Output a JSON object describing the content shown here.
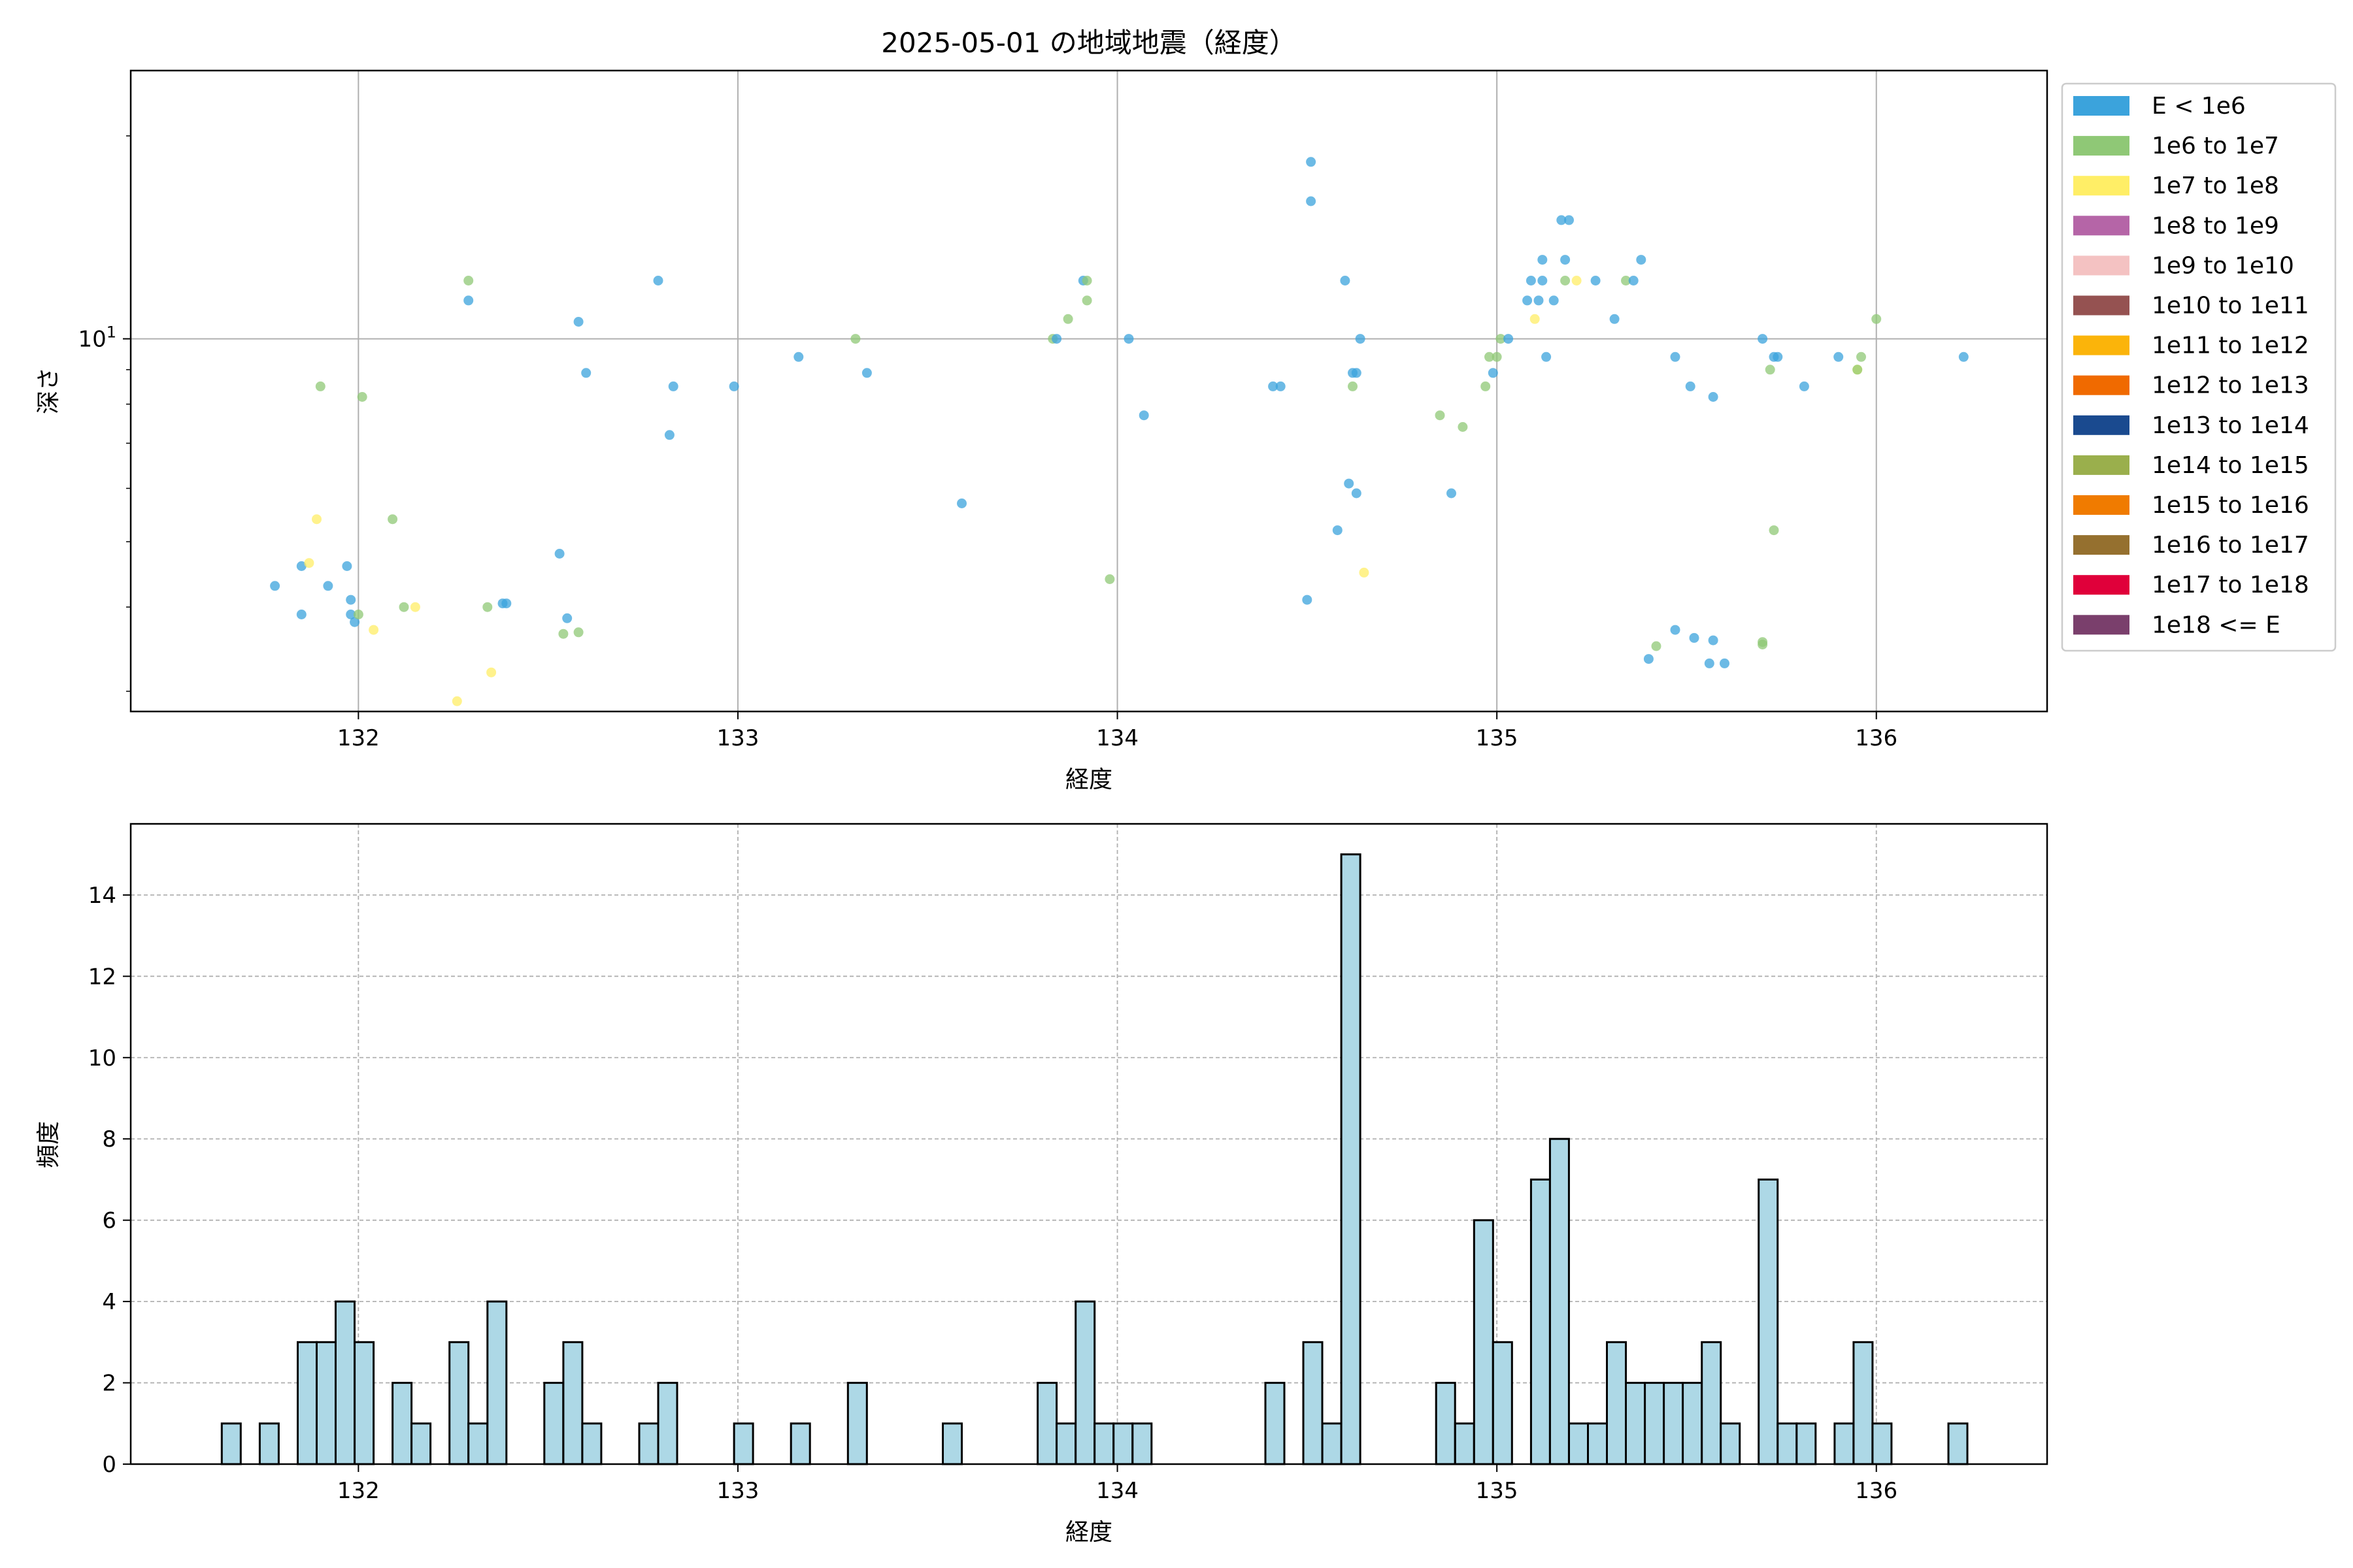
{
  "chart_data": [
    {
      "type": "scatter",
      "title": "2025-05-01 の地域地震（経度）",
      "xlabel": "経度",
      "ylabel": "深さ",
      "xlim": [
        131.4,
        136.45
      ],
      "ylim": [
        2.8,
        25
      ],
      "yscale": "log",
      "x_ticks": [
        132,
        133,
        134,
        135,
        136
      ],
      "y_tick_labels": [
        {
          "value": 10,
          "base": "10",
          "exp": "1"
        }
      ],
      "grid": true,
      "legend_position": "outside-right",
      "legend": [
        {
          "label": "E < 1e6",
          "color": "#3ba3dc"
        },
        {
          "label": "1e6 to 1e7",
          "color": "#8fc876"
        },
        {
          "label": "1e7 to 1e8",
          "color": "#ffee66"
        },
        {
          "label": "1e8 to 1e9",
          "color": "#b565a7"
        },
        {
          "label": "1e9 to 1e10",
          "color": "#f4c2c2"
        },
        {
          "label": "1e10 to 1e11",
          "color": "#955251"
        },
        {
          "label": "1e11 to 1e12",
          "color": "#fbb40a"
        },
        {
          "label": "1e12 to 1e13",
          "color": "#f06a00"
        },
        {
          "label": "1e13 to 1e14",
          "color": "#1a4a8f"
        },
        {
          "label": "1e14 to 1e15",
          "color": "#9aaf4c"
        },
        {
          "label": "1e15 to 1e16",
          "color": "#f07b00"
        },
        {
          "label": "1e16 to 1e17",
          "color": "#95702f"
        },
        {
          "label": "1e17 to 1e18",
          "color": "#e0003a"
        },
        {
          "label": "1e18 <= E",
          "color": "#7a3f6c"
        }
      ],
      "points": [
        {
          "x": 131.78,
          "y": 4.3,
          "c": 0
        },
        {
          "x": 131.85,
          "y": 4.6,
          "c": 0
        },
        {
          "x": 131.85,
          "y": 3.9,
          "c": 0
        },
        {
          "x": 131.87,
          "y": 4.65,
          "c": 2
        },
        {
          "x": 131.89,
          "y": 5.4,
          "c": 2
        },
        {
          "x": 131.9,
          "y": 8.5,
          "c": 1
        },
        {
          "x": 131.92,
          "y": 4.3,
          "c": 0
        },
        {
          "x": 131.97,
          "y": 4.6,
          "c": 0
        },
        {
          "x": 131.98,
          "y": 4.1,
          "c": 0
        },
        {
          "x": 131.98,
          "y": 3.9,
          "c": 0
        },
        {
          "x": 131.99,
          "y": 3.8,
          "c": 0
        },
        {
          "x": 132.0,
          "y": 3.9,
          "c": 1
        },
        {
          "x": 132.01,
          "y": 8.2,
          "c": 1
        },
        {
          "x": 132.04,
          "y": 3.7,
          "c": 2
        },
        {
          "x": 132.09,
          "y": 5.4,
          "c": 1
        },
        {
          "x": 132.12,
          "y": 4.0,
          "c": 1
        },
        {
          "x": 132.15,
          "y": 4.0,
          "c": 2
        },
        {
          "x": 132.26,
          "y": 2.9,
          "c": 2
        },
        {
          "x": 132.29,
          "y": 11.4,
          "c": 0
        },
        {
          "x": 132.29,
          "y": 12.2,
          "c": 1
        },
        {
          "x": 132.34,
          "y": 4.0,
          "c": 1
        },
        {
          "x": 132.35,
          "y": 3.2,
          "c": 2
        },
        {
          "x": 132.38,
          "y": 4.05,
          "c": 0
        },
        {
          "x": 132.39,
          "y": 4.05,
          "c": 0
        },
        {
          "x": 132.53,
          "y": 4.8,
          "c": 0
        },
        {
          "x": 132.54,
          "y": 3.65,
          "c": 1
        },
        {
          "x": 132.55,
          "y": 3.85,
          "c": 0
        },
        {
          "x": 132.58,
          "y": 10.6,
          "c": 0
        },
        {
          "x": 132.58,
          "y": 3.67,
          "c": 1
        },
        {
          "x": 132.6,
          "y": 8.9,
          "c": 0
        },
        {
          "x": 132.79,
          "y": 12.2,
          "c": 0
        },
        {
          "x": 132.82,
          "y": 7.2,
          "c": 0
        },
        {
          "x": 132.83,
          "y": 8.5,
          "c": 0
        },
        {
          "x": 132.99,
          "y": 8.5,
          "c": 0
        },
        {
          "x": 133.16,
          "y": 9.4,
          "c": 0
        },
        {
          "x": 133.31,
          "y": 10.0,
          "c": 1
        },
        {
          "x": 133.34,
          "y": 8.9,
          "c": 0
        },
        {
          "x": 133.59,
          "y": 5.7,
          "c": 0
        },
        {
          "x": 133.83,
          "y": 10.0,
          "c": 1
        },
        {
          "x": 133.84,
          "y": 10.0,
          "c": 0
        },
        {
          "x": 133.87,
          "y": 10.7,
          "c": 1
        },
        {
          "x": 133.91,
          "y": 12.2,
          "c": 0
        },
        {
          "x": 133.92,
          "y": 12.2,
          "c": 1
        },
        {
          "x": 133.92,
          "y": 11.4,
          "c": 1
        },
        {
          "x": 133.98,
          "y": 4.4,
          "c": 1
        },
        {
          "x": 134.03,
          "y": 10.0,
          "c": 0
        },
        {
          "x": 134.07,
          "y": 7.7,
          "c": 0
        },
        {
          "x": 134.41,
          "y": 8.5,
          "c": 0
        },
        {
          "x": 134.43,
          "y": 8.5,
          "c": 0
        },
        {
          "x": 134.5,
          "y": 4.1,
          "c": 0
        },
        {
          "x": 134.51,
          "y": 18.3,
          "c": 0
        },
        {
          "x": 134.51,
          "y": 16.0,
          "c": 0
        },
        {
          "x": 134.58,
          "y": 5.2,
          "c": 0
        },
        {
          "x": 134.6,
          "y": 12.2,
          "c": 0
        },
        {
          "x": 134.61,
          "y": 6.1,
          "c": 0
        },
        {
          "x": 134.62,
          "y": 8.5,
          "c": 1
        },
        {
          "x": 134.62,
          "y": 8.9,
          "c": 0
        },
        {
          "x": 134.63,
          "y": 8.9,
          "c": 0
        },
        {
          "x": 134.63,
          "y": 5.9,
          "c": 0
        },
        {
          "x": 134.64,
          "y": 10.0,
          "c": 0
        },
        {
          "x": 134.65,
          "y": 4.5,
          "c": 2
        },
        {
          "x": 134.85,
          "y": 7.7,
          "c": 1
        },
        {
          "x": 134.88,
          "y": 5.9,
          "c": 0
        },
        {
          "x": 134.91,
          "y": 7.4,
          "c": 1
        },
        {
          "x": 134.97,
          "y": 8.5,
          "c": 1
        },
        {
          "x": 134.98,
          "y": 9.4,
          "c": 1
        },
        {
          "x": 134.99,
          "y": 8.9,
          "c": 0
        },
        {
          "x": 135.0,
          "y": 9.4,
          "c": 1
        },
        {
          "x": 135.01,
          "y": 10.0,
          "c": 1
        },
        {
          "x": 135.03,
          "y": 10.0,
          "c": 0
        },
        {
          "x": 135.08,
          "y": 11.4,
          "c": 0
        },
        {
          "x": 135.09,
          "y": 12.2,
          "c": 0
        },
        {
          "x": 135.1,
          "y": 10.7,
          "c": 2
        },
        {
          "x": 135.11,
          "y": 11.4,
          "c": 0
        },
        {
          "x": 135.12,
          "y": 12.2,
          "c": 0
        },
        {
          "x": 135.12,
          "y": 13.1,
          "c": 0
        },
        {
          "x": 135.13,
          "y": 9.4,
          "c": 0
        },
        {
          "x": 135.15,
          "y": 11.4,
          "c": 0
        },
        {
          "x": 135.17,
          "y": 15.0,
          "c": 0
        },
        {
          "x": 135.18,
          "y": 12.2,
          "c": 1
        },
        {
          "x": 135.18,
          "y": 13.1,
          "c": 0
        },
        {
          "x": 135.19,
          "y": 15.0,
          "c": 0
        },
        {
          "x": 135.21,
          "y": 12.2,
          "c": 2
        },
        {
          "x": 135.26,
          "y": 12.2,
          "c": 0
        },
        {
          "x": 135.31,
          "y": 10.7,
          "c": 0
        },
        {
          "x": 135.34,
          "y": 12.2,
          "c": 1
        },
        {
          "x": 135.36,
          "y": 12.2,
          "c": 0
        },
        {
          "x": 135.38,
          "y": 13.1,
          "c": 0
        },
        {
          "x": 135.4,
          "y": 3.35,
          "c": 0
        },
        {
          "x": 135.42,
          "y": 3.5,
          "c": 1
        },
        {
          "x": 135.47,
          "y": 9.4,
          "c": 0
        },
        {
          "x": 135.47,
          "y": 3.7,
          "c": 0
        },
        {
          "x": 135.51,
          "y": 8.5,
          "c": 0
        },
        {
          "x": 135.52,
          "y": 3.6,
          "c": 0
        },
        {
          "x": 135.56,
          "y": 3.3,
          "c": 0
        },
        {
          "x": 135.57,
          "y": 8.2,
          "c": 0
        },
        {
          "x": 135.57,
          "y": 3.57,
          "c": 0
        },
        {
          "x": 135.6,
          "y": 3.3,
          "c": 0
        },
        {
          "x": 135.7,
          "y": 3.55,
          "c": 1
        },
        {
          "x": 135.7,
          "y": 10.0,
          "c": 0
        },
        {
          "x": 135.7,
          "y": 3.52,
          "c": 1
        },
        {
          "x": 135.72,
          "y": 9.0,
          "c": 1
        },
        {
          "x": 135.73,
          "y": 5.2,
          "c": 1
        },
        {
          "x": 135.73,
          "y": 9.4,
          "c": 0
        },
        {
          "x": 135.74,
          "y": 9.4,
          "c": 0
        },
        {
          "x": 135.81,
          "y": 8.5,
          "c": 0
        },
        {
          "x": 135.9,
          "y": 9.4,
          "c": 0
        },
        {
          "x": 135.95,
          "y": 9.0,
          "c": 2
        },
        {
          "x": 135.95,
          "y": 9.0,
          "c": 1
        },
        {
          "x": 135.96,
          "y": 9.4,
          "c": 1
        },
        {
          "x": 136.0,
          "y": 10.7,
          "c": 1
        },
        {
          "x": 136.23,
          "y": 9.4,
          "c": 0
        }
      ]
    },
    {
      "type": "bar",
      "xlabel": "経度",
      "ylabel": "頻度",
      "xlim": [
        131.4,
        136.45
      ],
      "ylim": [
        0,
        15.75
      ],
      "x_ticks": [
        132,
        133,
        134,
        135,
        136
      ],
      "y_ticks": [
        0,
        2,
        4,
        6,
        8,
        10,
        12,
        14
      ],
      "grid": true,
      "bar_color": "#add8e6",
      "bin_width": 0.05,
      "bin_starts": [
        131.64,
        131.74,
        131.84,
        131.89,
        131.94,
        131.99,
        132.09,
        132.14,
        132.24,
        132.29,
        132.34,
        132.49,
        132.54,
        132.59,
        132.74,
        132.79,
        132.99,
        133.14,
        133.29,
        133.54,
        133.79,
        133.84,
        133.89,
        133.94,
        133.99,
        134.04,
        134.39,
        134.49,
        134.54,
        134.59,
        134.84,
        134.89,
        134.94,
        134.99,
        135.09,
        135.14,
        135.19,
        135.24,
        135.29,
        135.34,
        135.39,
        135.44,
        135.49,
        135.54,
        135.59,
        135.69,
        135.74,
        135.79,
        135.89,
        135.94,
        135.99,
        136.19
      ],
      "values": [
        1,
        1,
        3,
        3,
        4,
        3,
        2,
        1,
        3,
        1,
        4,
        2,
        3,
        1,
        1,
        2,
        1,
        1,
        2,
        1,
        2,
        1,
        4,
        1,
        1,
        1,
        2,
        3,
        1,
        15,
        2,
        1,
        6,
        3,
        7,
        8,
        1,
        1,
        3,
        2,
        2,
        2,
        2,
        3,
        1,
        7,
        1,
        1,
        1,
        3,
        1,
        1
      ]
    }
  ]
}
